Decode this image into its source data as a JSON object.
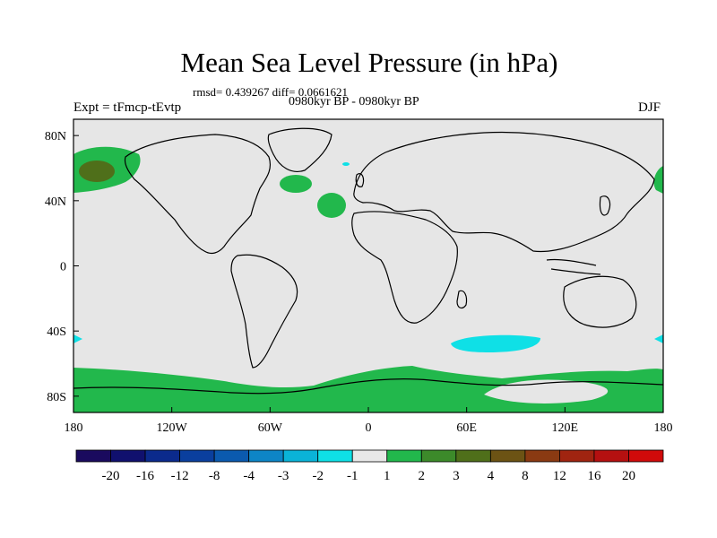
{
  "title": "Mean Sea Level Pressure (in hPa)",
  "stats": "rmsd= 0.439267 diff= 0.0661621",
  "period": "0980kyr BP - 0980kyr BP",
  "experiment": "Expt = tFmcp-tEvtp",
  "season": "DJF",
  "axes": {
    "lat_labels": [
      "80N",
      "40N",
      "0",
      "40S",
      "80S"
    ],
    "lon_labels": [
      "180",
      "120W",
      "60W",
      "0",
      "60E",
      "120E",
      "180"
    ]
  },
  "colorbar": {
    "labels": [
      "-20",
      "-16",
      "-12",
      "-8",
      "-4",
      "-3",
      "-2",
      "-1",
      "1",
      "2",
      "3",
      "4",
      "8",
      "12",
      "16",
      "20"
    ],
    "colors": [
      "#1a0a5e",
      "#10106e",
      "#0b2a8c",
      "#0a3f9e",
      "#0b5aaf",
      "#0d85c6",
      "#0ab3d8",
      "#0fe0e6",
      "#e8e8e8",
      "#22b84c",
      "#3c8a2a",
      "#4f6f1a",
      "#6c5314",
      "#8a3a12",
      "#a02410",
      "#b51010",
      "#d00a0a"
    ]
  },
  "colors": {
    "land_ocean_background": "#e6e6e6",
    "positive_anomaly": "#22b84c",
    "negative_anomaly": "#0fe0e6",
    "coast": "#000000"
  }
}
